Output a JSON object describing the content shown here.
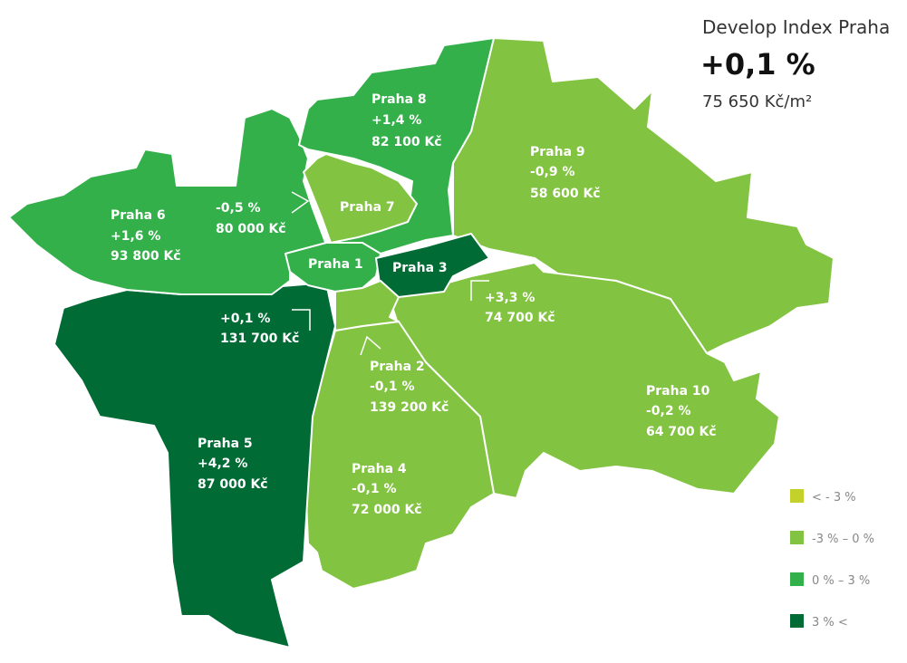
{
  "header": {
    "title": "Develop Index Praha",
    "value": "+0,1 %",
    "price": "75 650 Kč/m²"
  },
  "districts": [
    {
      "name": "Praha 1",
      "change": "+0,1 %",
      "price": "131 700 Kč",
      "color": "#33b04a"
    },
    {
      "name": "Praha 2",
      "change": "-0,1 %",
      "price": "139 200 Kč",
      "color": "#82c341"
    },
    {
      "name": "Praha 3",
      "change": "+3,3 %",
      "price": "74 700 Kč",
      "color": "#006b35"
    },
    {
      "name": "Praha 4",
      "change": "-0,1 %",
      "price": "72 000 Kč",
      "color": "#82c341"
    },
    {
      "name": "Praha 5",
      "change": "+4,2 %",
      "price": "87 000 Kč",
      "color": "#006b35"
    },
    {
      "name": "Praha 6",
      "change": "+1,6 %",
      "price": "93 800 Kč",
      "color": "#33b04a"
    },
    {
      "name": "Praha 7",
      "change": "-0,5 %",
      "price": "80 000 Kč",
      "color": "#82c341"
    },
    {
      "name": "Praha 8",
      "change": "+1,4 %",
      "price": "82 100 Kč",
      "color": "#33b04a"
    },
    {
      "name": "Praha 9",
      "change": "-0,9 %",
      "price": "58 600 Kč",
      "color": "#82c341"
    },
    {
      "name": "Praha 10",
      "change": "-0,2 %",
      "price": "64 700 Kč",
      "color": "#82c341"
    }
  ],
  "legend": [
    {
      "label": "< - 3 %",
      "color": "#c4d12a"
    },
    {
      "label": "-3 % – 0 %",
      "color": "#82c341"
    },
    {
      "label": "0 % – 3 %",
      "color": "#33b04a"
    },
    {
      "label": "3 % <",
      "color": "#006b35"
    }
  ]
}
